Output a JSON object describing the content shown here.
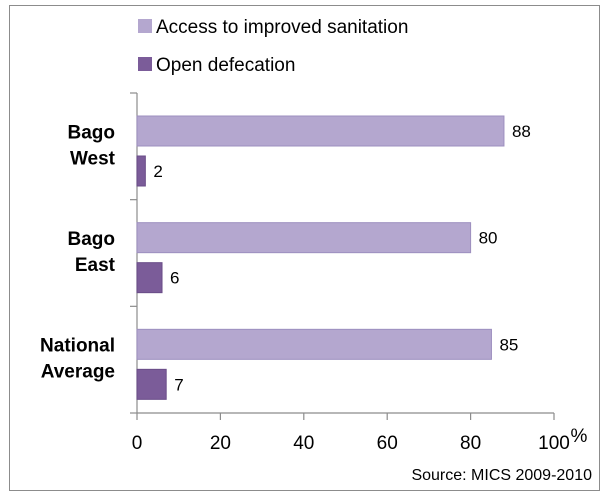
{
  "chart_data": {
    "type": "bar",
    "orientation": "horizontal",
    "categories": [
      [
        "Bago",
        "West"
      ],
      [
        "Bago",
        "East"
      ],
      [
        "National",
        "Average"
      ]
    ],
    "series": [
      {
        "name": "Access to improved sanitation",
        "color": "#b4a7cf",
        "values": [
          88,
          80,
          85
        ]
      },
      {
        "name": "Open defecation",
        "color": "#7b5c99",
        "values": [
          2,
          6,
          7
        ]
      }
    ],
    "xlim": [
      0,
      100
    ],
    "xticks": [
      0,
      20,
      40,
      60,
      80,
      100
    ],
    "xunit": "%",
    "legend_position": "top",
    "grid": false,
    "source": "Source: MICS 2009-2010"
  }
}
